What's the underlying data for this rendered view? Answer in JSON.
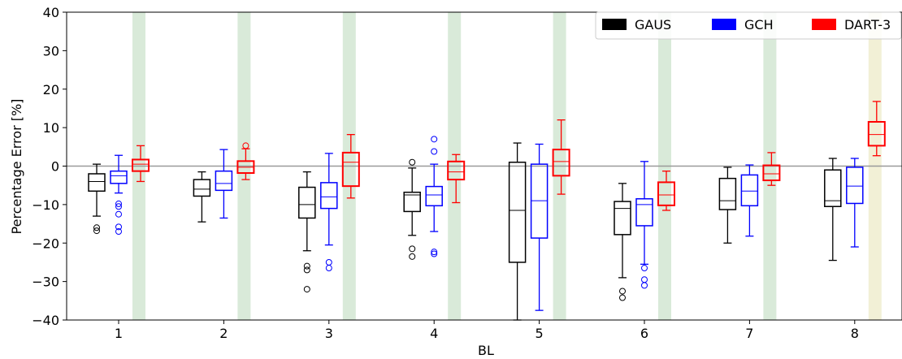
{
  "chart_data": {
    "type": "box",
    "xlabel": "BL",
    "ylabel": "Percentage Error [%]",
    "ylim": [
      -40,
      40
    ],
    "yticks": [
      -40,
      -30,
      -20,
      -10,
      0,
      10,
      20,
      30,
      40
    ],
    "categories": [
      "1",
      "2",
      "3",
      "4",
      "5",
      "6",
      "7",
      "8"
    ],
    "legend": {
      "placement": "top-right",
      "orientation": "horizontal"
    },
    "reference_line": 0,
    "reference_line_color": "#999999",
    "highlight_bands": [
      {
        "category": "1",
        "color": "#d9ead9"
      },
      {
        "category": "2",
        "color": "#d9ead9"
      },
      {
        "category": "3",
        "color": "#d9ead9"
      },
      {
        "category": "4",
        "color": "#d9ead9"
      },
      {
        "category": "5",
        "color": "#d9ead9"
      },
      {
        "category": "6",
        "color": "#d9ead9"
      },
      {
        "category": "7",
        "color": "#d9ead9"
      },
      {
        "category": "8",
        "color": "#f2f0d6"
      }
    ],
    "series": [
      {
        "name": "GAUS",
        "color": "#000000",
        "boxes": [
          {
            "whislo": -13,
            "q1": -6.5,
            "med": -4,
            "q3": -2,
            "whishi": 0.5,
            "fliers": [
              -16,
              -16.8
            ]
          },
          {
            "whislo": -14.5,
            "q1": -7.8,
            "med": -6,
            "q3": -3.5,
            "whishi": -1.5,
            "fliers": []
          },
          {
            "whislo": -22,
            "q1": -13.5,
            "med": -10,
            "q3": -5.5,
            "whishi": -1.5,
            "fliers": [
              -26,
              -27,
              -32
            ]
          },
          {
            "whislo": -18,
            "q1": -11.8,
            "med": -7.5,
            "q3": -6.8,
            "whishi": -0.5,
            "fliers": [
              1,
              -21.5,
              -23.5
            ]
          },
          {
            "whislo": -40,
            "q1": -25,
            "med": -11.5,
            "q3": 1,
            "whishi": 6,
            "fliers": []
          },
          {
            "whislo": -29,
            "q1": -17.8,
            "med": -11,
            "q3": -9.2,
            "whishi": -4.5,
            "fliers": [
              -32.5,
              -34.2
            ]
          },
          {
            "whislo": -20,
            "q1": -11.3,
            "med": -9,
            "q3": -3.2,
            "whishi": -0.3,
            "fliers": []
          },
          {
            "whislo": -24.5,
            "q1": -10.5,
            "med": -9,
            "q3": -1,
            "whishi": 2,
            "fliers": []
          }
        ]
      },
      {
        "name": "GCH",
        "color": "#0000ff",
        "boxes": [
          {
            "whislo": -7,
            "q1": -4.5,
            "med": -2.5,
            "q3": -1.3,
            "whishi": 2.8,
            "fliers": [
              -9.8,
              -10.5,
              -12.5,
              -15.8,
              -17
            ]
          },
          {
            "whislo": -13.5,
            "q1": -6.3,
            "med": -4.5,
            "q3": -1.3,
            "whishi": 4.3,
            "fliers": []
          },
          {
            "whislo": -20.5,
            "q1": -11,
            "med": -8,
            "q3": -4.3,
            "whishi": 3.3,
            "fliers": [
              -25,
              -26.5
            ]
          },
          {
            "whislo": -17,
            "q1": -10.3,
            "med": -7.5,
            "q3": -5.3,
            "whishi": 0.5,
            "fliers": [
              7,
              3.8,
              -22.3,
              -22.8
            ]
          },
          {
            "whislo": -37.5,
            "q1": -18.7,
            "med": -9,
            "q3": 0.5,
            "whishi": 5.7,
            "fliers": []
          },
          {
            "whislo": -25.5,
            "q1": -15.5,
            "med": -10,
            "q3": -8.5,
            "whishi": 1.2,
            "fliers": [
              -26.5,
              -29.5,
              -31
            ]
          },
          {
            "whislo": -18.2,
            "q1": -10.3,
            "med": -6.5,
            "q3": -2.3,
            "whishi": 0.3,
            "fliers": []
          },
          {
            "whislo": -21,
            "q1": -9.7,
            "med": -5.2,
            "q3": -0.3,
            "whishi": 2,
            "fliers": []
          }
        ]
      },
      {
        "name": "DART-3",
        "color": "#ff0000",
        "boxes": [
          {
            "whislo": -4,
            "q1": -1.3,
            "med": 0.5,
            "q3": 1.7,
            "whishi": 5.3,
            "fliers": []
          },
          {
            "whislo": -3.5,
            "q1": -1.8,
            "med": -0.3,
            "q3": 1.3,
            "whishi": 4.5,
            "fliers": [
              5.3
            ]
          },
          {
            "whislo": -8.3,
            "q1": -5.2,
            "med": 1,
            "q3": 3.5,
            "whishi": 8.2,
            "fliers": []
          },
          {
            "whislo": -9.5,
            "q1": -3.5,
            "med": -1.5,
            "q3": 1.2,
            "whishi": 3,
            "fliers": []
          },
          {
            "whislo": -7.3,
            "q1": -2.5,
            "med": 1.2,
            "q3": 4.3,
            "whishi": 12,
            "fliers": []
          },
          {
            "whislo": -11.5,
            "q1": -10.2,
            "med": -7.5,
            "q3": -4.2,
            "whishi": -1.3,
            "fliers": []
          },
          {
            "whislo": -5,
            "q1": -3.7,
            "med": -2,
            "q3": 0.2,
            "whishi": 3.5,
            "fliers": []
          },
          {
            "whislo": 2.7,
            "q1": 5.3,
            "med": 8.2,
            "q3": 11.5,
            "whishi": 16.8,
            "fliers": []
          }
        ]
      }
    ]
  }
}
